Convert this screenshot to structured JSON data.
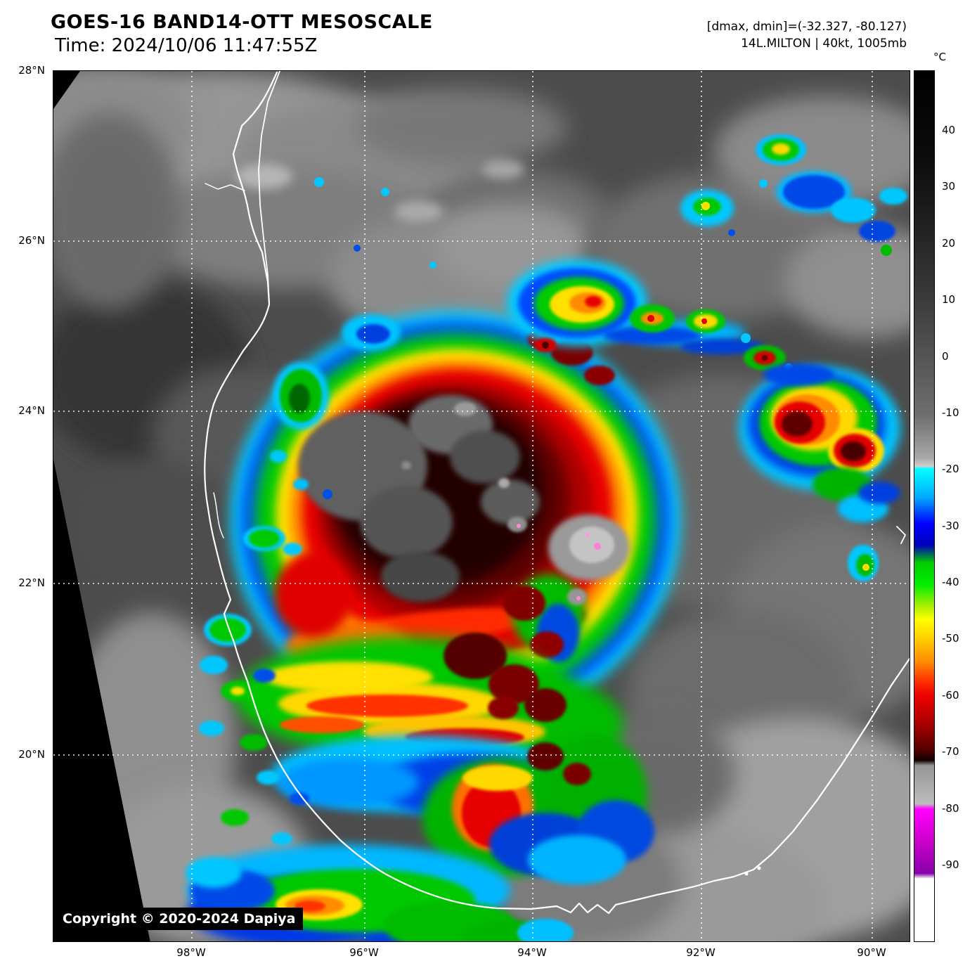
{
  "header": {
    "title": "GOES-16 BAND14-OTT MESOSCALE",
    "time": "Time: 2024/10/06 11:47:55Z",
    "range_info": "[dmax, dmin]=(-32.327, -80.127)",
    "storm_info": "14L.MILTON | 40kt, 1005mb"
  },
  "map": {
    "lat_ticks": [
      "28°N",
      "26°N",
      "24°N",
      "22°N",
      "20°N"
    ],
    "lon_ticks": [
      "98°W",
      "96°W",
      "94°W",
      "92°W",
      "90°W"
    ],
    "copyright": "Copyright © 2020-2024 Dapiya"
  },
  "colorbar": {
    "unit": "°C",
    "tick_labels": [
      "40",
      "30",
      "20",
      "10",
      "0",
      "-10",
      "-20",
      "-30",
      "-40",
      "-50",
      "-60",
      "-70",
      "-80",
      "-90"
    ]
  }
}
